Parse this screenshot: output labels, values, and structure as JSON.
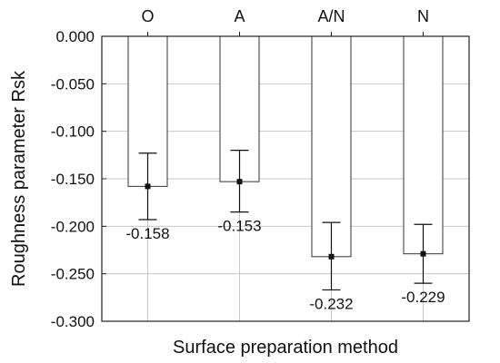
{
  "chart_data": {
    "type": "bar",
    "categories": [
      "O",
      "A",
      "A/N",
      "N"
    ],
    "values": [
      -0.158,
      -0.153,
      -0.232,
      -0.229
    ],
    "value_labels": [
      "-0.158",
      "-0.153",
      "-0.232",
      "-0.229"
    ],
    "error_bars": {
      "upper": [
        -0.123,
        -0.12,
        -0.196,
        -0.198
      ],
      "lower": [
        -0.193,
        -0.185,
        -0.267,
        -0.26
      ]
    },
    "xlabel": "Surface preparation method",
    "ylabel": "Roughness parameter Rsk",
    "ylim": [
      -0.3,
      0.0
    ],
    "yticks": [
      0.0,
      -0.05,
      -0.1,
      -0.15,
      -0.2,
      -0.25,
      -0.3
    ],
    "ytick_labels": [
      "0.000",
      "-0.050",
      "-0.100",
      "-0.150",
      "-0.200",
      "-0.250",
      "-0.300"
    ],
    "category_axis_position": "top",
    "grid": true,
    "colors": {
      "bar_fill": "#ffffff",
      "bar_edge": "#333333",
      "grid": "#c8c8c8",
      "axis": "#222222"
    }
  }
}
